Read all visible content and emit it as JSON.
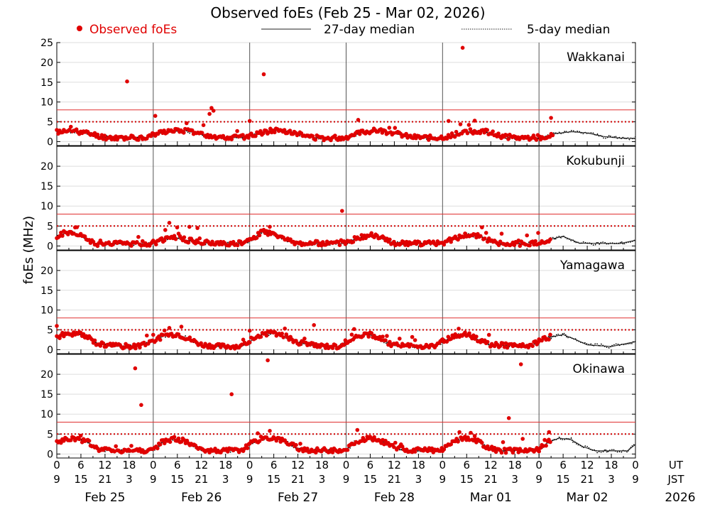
{
  "chart_data": {
    "type": "scatter",
    "title": "Observed foEs (Feb 25 - Mar 02, 2026)",
    "ylabel": "foEs (MHz)",
    "ylim": [
      -1,
      25
    ],
    "yticks_top": [
      0,
      5,
      10,
      15,
      20,
      25
    ],
    "yticks": [
      0,
      5,
      10,
      15,
      20
    ],
    "threshold_lines": {
      "solid_red": 8,
      "dotted_red": 5
    },
    "legend": {
      "observed": "Observed foEs",
      "median27": "27-day median",
      "median5": "5-day median"
    },
    "ut_label": "UT",
    "jst_label": "JST",
    "year_label": "2026",
    "ut_ticks": [
      "0",
      "6",
      "12",
      "18",
      "0",
      "6",
      "12",
      "18",
      "0",
      "6",
      "12",
      "18",
      "0",
      "6",
      "12",
      "18",
      "0",
      "6",
      "12",
      "18",
      "0",
      "6",
      "12",
      "18",
      "0"
    ],
    "jst_ticks": [
      "9",
      "15",
      "21",
      "3",
      "9",
      "15",
      "21",
      "3",
      "9",
      "15",
      "21",
      "3",
      "9",
      "15",
      "21",
      "3",
      "9",
      "15",
      "21",
      "3",
      "9",
      "15",
      "21",
      "3",
      "9"
    ],
    "day_labels": [
      "Feb 25",
      "Feb 26",
      "Feb 27",
      "Feb 28",
      "Mar 01",
      "Mar 02"
    ],
    "x_unit": "hours since Feb 25 00 UT (observations end ~Mar 02 03 UT)",
    "stations": [
      {
        "name": "Wakkanai",
        "median": [
          [
            0,
            2.4
          ],
          [
            4,
            2.6
          ],
          [
            8,
            2
          ],
          [
            12,
            1
          ],
          [
            18,
            0.9
          ],
          [
            22,
            1
          ],
          [
            26,
            2.3
          ],
          [
            32,
            2.8
          ],
          [
            36,
            1.8
          ],
          [
            40,
            1
          ],
          [
            46,
            1
          ],
          [
            50,
            2
          ],
          [
            54,
            2.8
          ],
          [
            58,
            2.6
          ],
          [
            62,
            1.3
          ],
          [
            66,
            0.8
          ],
          [
            72,
            1
          ],
          [
            76,
            2.3
          ],
          [
            80,
            2.8
          ],
          [
            84,
            2.1
          ],
          [
            88,
            1.1
          ],
          [
            94,
            0.9
          ],
          [
            98,
            1.3
          ],
          [
            101,
            2.5
          ],
          [
            106,
            2.6
          ],
          [
            110,
            1.5
          ],
          [
            114,
            0.9
          ],
          [
            120,
            0.9
          ],
          [
            124,
            2
          ],
          [
            128,
            2.5
          ],
          [
            132,
            2.2
          ],
          [
            136,
            1.3
          ],
          [
            140,
            0.9
          ],
          [
            144,
            0.8
          ]
        ],
        "obs_clusters": [
          {
            "start": 0,
            "end": 26,
            "step": 0.35,
            "seed": 11
          },
          {
            "start": 26,
            "end": 50,
            "step": 0.35,
            "seed": 12
          },
          {
            "start": 50,
            "end": 74,
            "step": 0.35,
            "seed": 13
          },
          {
            "start": 74,
            "end": 98,
            "step": 0.35,
            "seed": 14
          },
          {
            "start": 98,
            "end": 122,
            "step": 0.35,
            "seed": 15
          },
          {
            "start": 122,
            "end": 123.5,
            "step": 0.35,
            "seed": 16
          }
        ],
        "outliers": [
          [
            17.5,
            15.2
          ],
          [
            24.5,
            6.5
          ],
          [
            38.5,
            8.5
          ],
          [
            39,
            7.8
          ],
          [
            38,
            7
          ],
          [
            48,
            5.2
          ],
          [
            51.5,
            17
          ],
          [
            75,
            5.5
          ],
          [
            97.5,
            5.2
          ],
          [
            104,
            5.3
          ],
          [
            123,
            6
          ],
          [
            101,
            23.7
          ]
        ]
      },
      {
        "name": "Kokubunji",
        "median": [
          [
            0,
            2.2
          ],
          [
            2,
            3.2
          ],
          [
            4,
            3.4
          ],
          [
            6,
            2.5
          ],
          [
            8,
            1.2
          ],
          [
            10,
            0.5
          ],
          [
            24,
            0.6
          ],
          [
            26,
            1.5
          ],
          [
            29,
            2.2
          ],
          [
            32,
            1.5
          ],
          [
            36,
            0.8
          ],
          [
            40,
            0.6
          ],
          [
            46,
            0.6
          ],
          [
            48,
            1.2
          ],
          [
            51,
            3.5
          ],
          [
            54,
            3
          ],
          [
            57,
            1.5
          ],
          [
            60,
            0.6
          ],
          [
            72,
            0.6
          ],
          [
            74,
            1.6
          ],
          [
            78,
            2.8
          ],
          [
            82,
            1.5
          ],
          [
            84,
            0.6
          ],
          [
            96,
            0.6
          ],
          [
            98,
            1.4
          ],
          [
            102,
            2.8
          ],
          [
            106,
            2.2
          ],
          [
            108,
            1
          ],
          [
            110,
            0.5
          ],
          [
            120,
            0.6
          ],
          [
            122,
            1.5
          ],
          [
            126,
            2.4
          ],
          [
            128,
            1.6
          ],
          [
            130,
            0.7
          ],
          [
            140,
            0.6
          ],
          [
            144,
            1.4
          ]
        ],
        "obs_clusters": [
          {
            "start": 0,
            "end": 24,
            "step": 0.35,
            "seed": 21
          },
          {
            "start": 24,
            "end": 48,
            "step": 0.35,
            "seed": 22
          },
          {
            "start": 48,
            "end": 72,
            "step": 0.35,
            "seed": 23
          },
          {
            "start": 72,
            "end": 96,
            "step": 0.35,
            "seed": 24
          },
          {
            "start": 96,
            "end": 120,
            "step": 0.35,
            "seed": 25
          },
          {
            "start": 120,
            "end": 123,
            "step": 0.35,
            "seed": 26
          }
        ],
        "outliers": [
          [
            5,
            4.7
          ],
          [
            27,
            4
          ],
          [
            28,
            5.8
          ],
          [
            33,
            4.8
          ],
          [
            35,
            4.5
          ],
          [
            71,
            8.8
          ],
          [
            53,
            4.8
          ]
        ]
      },
      {
        "name": "Yamagawa",
        "median": [
          [
            0,
            3.2
          ],
          [
            2,
            3.8
          ],
          [
            5,
            4
          ],
          [
            8,
            3
          ],
          [
            10,
            1.5
          ],
          [
            14,
            0.9
          ],
          [
            20,
            0.8
          ],
          [
            24,
            2.2
          ],
          [
            27,
            3.6
          ],
          [
            30,
            3.9
          ],
          [
            33,
            2.6
          ],
          [
            36,
            1.2
          ],
          [
            40,
            0.8
          ],
          [
            46,
            0.8
          ],
          [
            48,
            2
          ],
          [
            51,
            3.8
          ],
          [
            54,
            4.2
          ],
          [
            57,
            3.3
          ],
          [
            60,
            1.8
          ],
          [
            64,
            1
          ],
          [
            70,
            0.8
          ],
          [
            72,
            2
          ],
          [
            75,
            3.6
          ],
          [
            78,
            3.8
          ],
          [
            81,
            2.4
          ],
          [
            84,
            1
          ],
          [
            94,
            0.8
          ],
          [
            96,
            2
          ],
          [
            99,
            3.5
          ],
          [
            102,
            3.8
          ],
          [
            105,
            2.5
          ],
          [
            108,
            1.2
          ],
          [
            118,
            0.8
          ],
          [
            120,
            2.2
          ],
          [
            123,
            3.2
          ],
          [
            126,
            3.8
          ],
          [
            129,
            2.6
          ],
          [
            132,
            1.2
          ],
          [
            138,
            0.8
          ],
          [
            144,
            2
          ]
        ],
        "obs_clusters": [
          {
            "start": 0,
            "end": 24,
            "step": 0.35,
            "seed": 31
          },
          {
            "start": 24,
            "end": 48,
            "step": 0.35,
            "seed": 32
          },
          {
            "start": 48,
            "end": 72,
            "step": 0.35,
            "seed": 33
          },
          {
            "start": 72,
            "end": 96,
            "step": 0.35,
            "seed": 34
          },
          {
            "start": 96,
            "end": 120,
            "step": 0.35,
            "seed": 35
          },
          {
            "start": 120,
            "end": 123,
            "step": 0.35,
            "seed": 36
          }
        ],
        "outliers": [
          [
            0,
            6
          ],
          [
            28,
            5.5
          ],
          [
            31,
            5.8
          ],
          [
            64,
            6.2
          ],
          [
            74,
            5.2
          ],
          [
            100,
            5.3
          ],
          [
            48,
            4.8
          ]
        ]
      },
      {
        "name": "Okinawa",
        "median": [
          [
            0,
            2.6
          ],
          [
            2,
            3.6
          ],
          [
            5,
            3.8
          ],
          [
            8,
            2.8
          ],
          [
            10,
            1.2
          ],
          [
            14,
            0.8
          ],
          [
            24,
            0.9
          ],
          [
            26,
            2.8
          ],
          [
            29,
            3.8
          ],
          [
            32,
            3.2
          ],
          [
            35,
            1.5
          ],
          [
            38,
            0.8
          ],
          [
            46,
            0.9
          ],
          [
            48,
            2.4
          ],
          [
            51,
            3.8
          ],
          [
            54,
            4
          ],
          [
            57,
            3
          ],
          [
            60,
            1.4
          ],
          [
            64,
            0.8
          ],
          [
            72,
            1
          ],
          [
            74,
            2.8
          ],
          [
            77,
            3.8
          ],
          [
            80,
            3.6
          ],
          [
            83,
            2.2
          ],
          [
            86,
            0.9
          ],
          [
            96,
            0.9
          ],
          [
            98,
            2.6
          ],
          [
            101,
            3.8
          ],
          [
            104,
            3.6
          ],
          [
            107,
            1.8
          ],
          [
            110,
            0.8
          ],
          [
            120,
            1
          ],
          [
            122,
            2.8
          ],
          [
            125,
            4
          ],
          [
            128,
            3.6
          ],
          [
            131,
            1.8
          ],
          [
            134,
            0.8
          ],
          [
            142,
            0.8
          ],
          [
            144,
            2.4
          ]
        ],
        "obs_clusters": [
          {
            "start": 0,
            "end": 24,
            "step": 0.35,
            "seed": 41
          },
          {
            "start": 24,
            "end": 48,
            "step": 0.35,
            "seed": 42
          },
          {
            "start": 48,
            "end": 72,
            "step": 0.35,
            "seed": 43
          },
          {
            "start": 72,
            "end": 96,
            "step": 0.35,
            "seed": 44
          },
          {
            "start": 96,
            "end": 120,
            "step": 0.35,
            "seed": 45
          },
          {
            "start": 120,
            "end": 123,
            "step": 0.35,
            "seed": 46
          }
        ],
        "outliers": [
          [
            19.5,
            21.5
          ],
          [
            21,
            12.3
          ],
          [
            43.5,
            15
          ],
          [
            52.5,
            23.5
          ],
          [
            50,
            5.2
          ],
          [
            53,
            5.8
          ],
          [
            112.5,
            9
          ],
          [
            115.5,
            22.5
          ],
          [
            122.5,
            5.5
          ],
          [
            104,
            4.5
          ]
        ]
      }
    ]
  }
}
